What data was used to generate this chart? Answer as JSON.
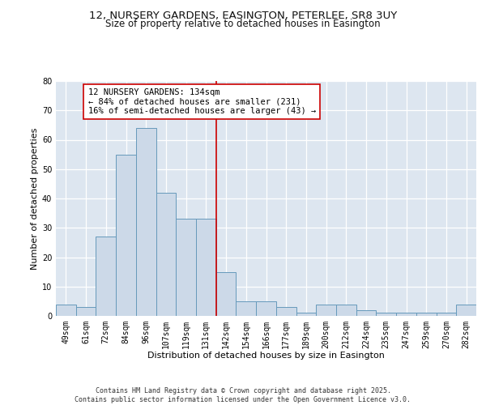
{
  "title_line1": "12, NURSERY GARDENS, EASINGTON, PETERLEE, SR8 3UY",
  "title_line2": "Size of property relative to detached houses in Easington",
  "xlabel": "Distribution of detached houses by size in Easington",
  "ylabel": "Number of detached properties",
  "bar_color": "#ccd9e8",
  "bar_edge_color": "#6699bb",
  "categories": [
    "49sqm",
    "61sqm",
    "72sqm",
    "84sqm",
    "96sqm",
    "107sqm",
    "119sqm",
    "131sqm",
    "142sqm",
    "154sqm",
    "166sqm",
    "177sqm",
    "189sqm",
    "200sqm",
    "212sqm",
    "224sqm",
    "235sqm",
    "247sqm",
    "259sqm",
    "270sqm",
    "282sqm"
  ],
  "values": [
    4,
    3,
    27,
    55,
    64,
    42,
    33,
    33,
    15,
    5,
    5,
    3,
    1,
    4,
    4,
    2,
    1,
    1,
    1,
    1,
    4
  ],
  "vline_color": "#cc0000",
  "annotation_text": "12 NURSERY GARDENS: 134sqm\n← 84% of detached houses are smaller (231)\n16% of semi-detached houses are larger (43) →",
  "ylim": [
    0,
    80
  ],
  "yticks": [
    0,
    10,
    20,
    30,
    40,
    50,
    60,
    70,
    80
  ],
  "background_color": "#dde6f0",
  "grid_color": "#ffffff",
  "footer": "Contains HM Land Registry data © Crown copyright and database right 2025.\nContains public sector information licensed under the Open Government Licence v3.0.",
  "title_fontsize": 9.5,
  "subtitle_fontsize": 8.5,
  "axis_label_fontsize": 8,
  "tick_fontsize": 7,
  "annotation_fontsize": 7.5,
  "footer_fontsize": 6
}
